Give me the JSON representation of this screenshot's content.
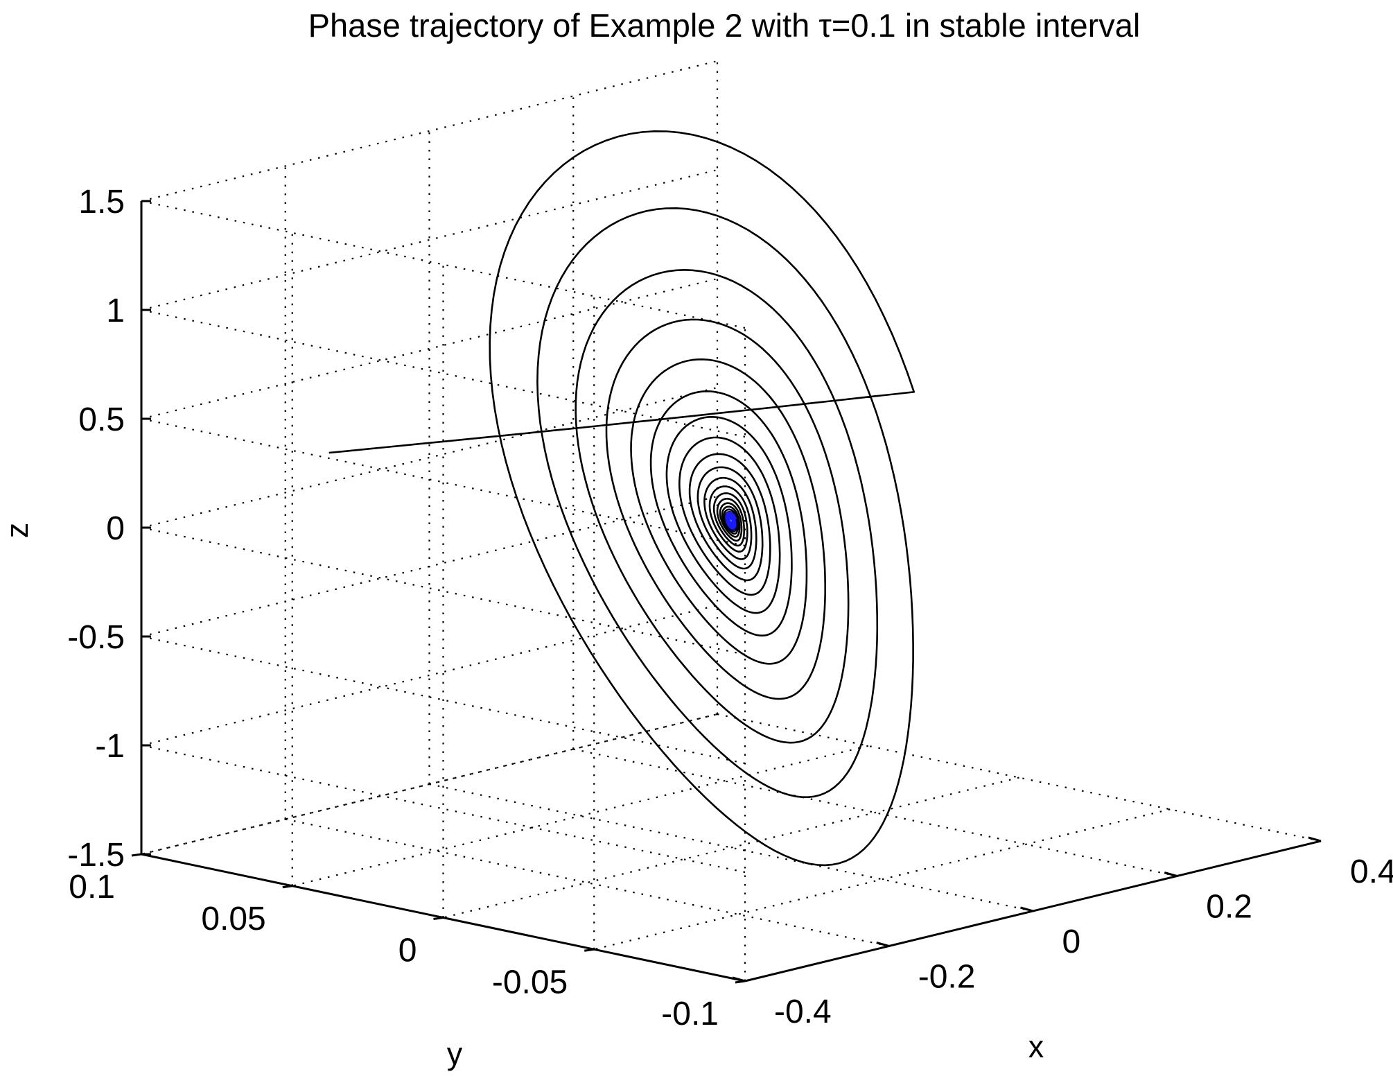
{
  "chart_data": {
    "type": "line",
    "subtype": "3d-phase-trajectory",
    "title": "Phase trajectory of Example 2 with τ=0.1 in stable interval",
    "xlabel": "x",
    "ylabel": "y",
    "zlabel": "z",
    "xlim": [
      -0.4,
      0.4
    ],
    "ylim": [
      -0.1,
      0.1
    ],
    "zlim": [
      -1.5,
      1.5
    ],
    "x_ticks": [
      -0.4,
      -0.2,
      0,
      0.2,
      0.4
    ],
    "x_tick_labels": [
      "-0.4",
      "-0.2",
      "0",
      "0.2",
      "0.4"
    ],
    "y_ticks": [
      -0.1,
      -0.05,
      0,
      0.05,
      0.1
    ],
    "y_tick_labels": [
      "-0.1",
      "-0.05",
      "0",
      "0.05",
      "0.1"
    ],
    "z_ticks": [
      -1.5,
      -1,
      -0.5,
      0,
      0.5,
      1,
      1.5
    ],
    "z_tick_labels": [
      "-1.5",
      "-1",
      "-0.5",
      "0",
      "0.5",
      "1",
      "1.5"
    ],
    "grid": true,
    "view": "3d",
    "trajectory": {
      "description": "decaying spiral converging to the origin",
      "start": {
        "x": -0.37,
        "y": 0.045,
        "z": 0.48
      },
      "approx_peak_z": 1.65,
      "approx_min_z": -1.5,
      "end": {
        "x": 0,
        "y": 0,
        "z": 0
      },
      "turns": 22,
      "color": "#000000",
      "end_color": "#0000ff"
    }
  }
}
